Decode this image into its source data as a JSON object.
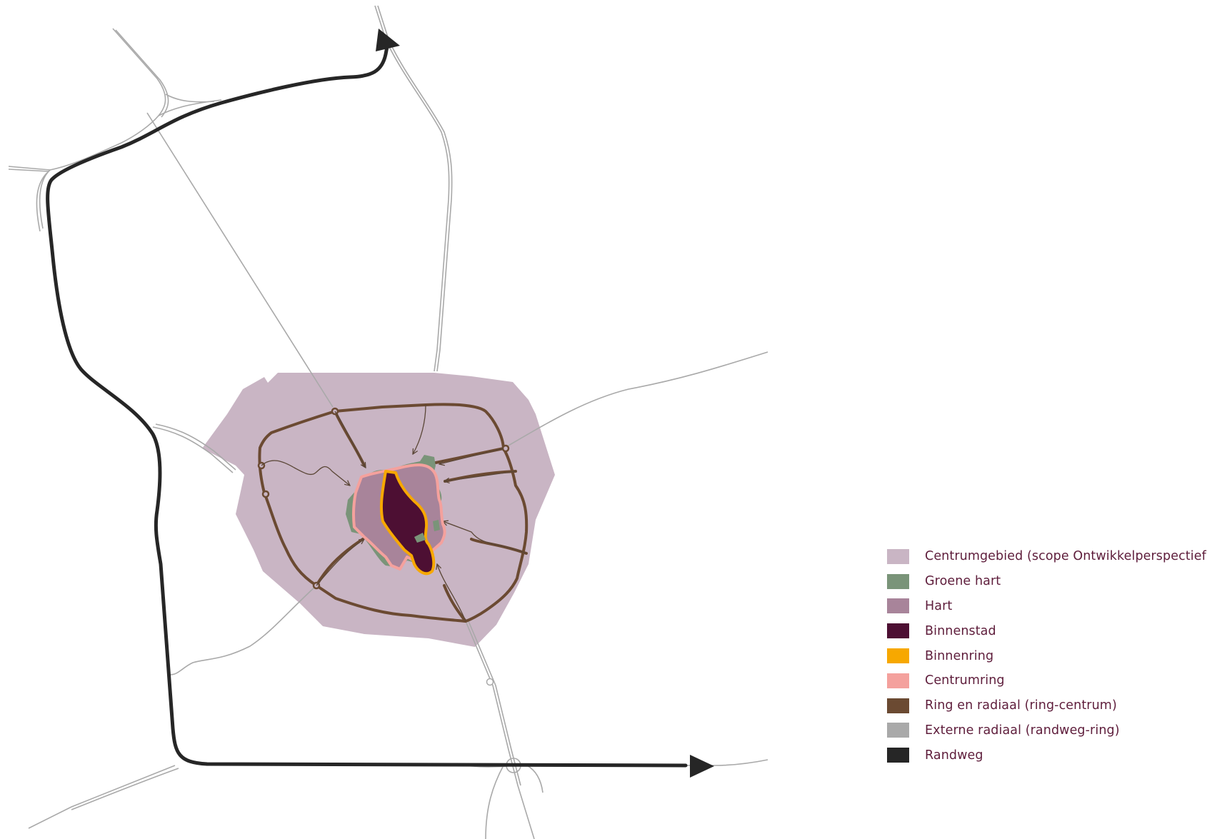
{
  "legend": {
    "items": [
      {
        "label": "Centrumgebied (scope Ontwikkelperspectief)",
        "color": "#c9b5c4"
      },
      {
        "label": "Groene hart",
        "color": "#7a9479"
      },
      {
        "label": "Hart",
        "color": "#a8849a"
      },
      {
        "label": "Binnenstad",
        "color": "#4d0f33"
      },
      {
        "label": "Binnenring",
        "color": "#f7a800"
      },
      {
        "label": "Centrumring",
        "color": "#f4a19d"
      },
      {
        "label": "Ring en radiaal (ring-centrum)",
        "color": "#6b4a32"
      },
      {
        "label": "Externe radiaal (randweg-ring)",
        "color": "#a9a9a9"
      },
      {
        "label": "Randweg",
        "color": "#262626"
      }
    ]
  }
}
